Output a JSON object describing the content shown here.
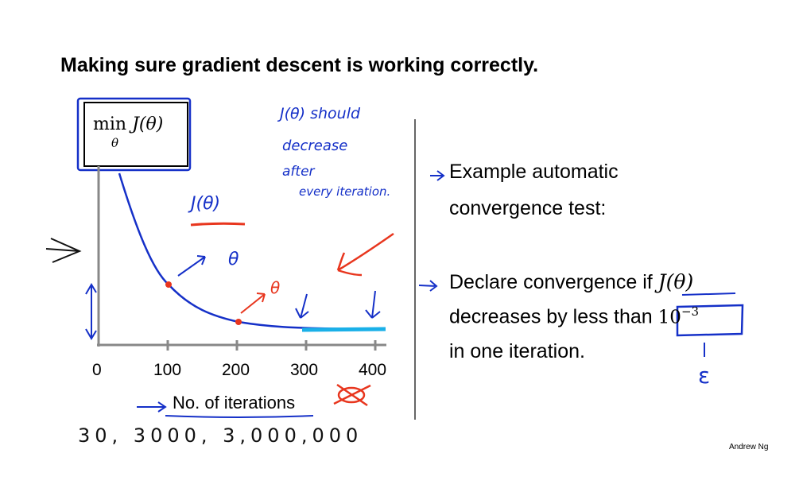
{
  "slide": {
    "title": "Making sure gradient descent is working correctly.",
    "min_expression": {
      "operator": "min",
      "function": "J(θ)",
      "subscript": "θ"
    },
    "plot": {
      "x_ticks": [
        "0",
        "100",
        "200",
        "300",
        "400"
      ],
      "xlabel": "No. of iterations"
    },
    "right_column": {
      "line1": "Example automatic",
      "line2": "convergence test:",
      "line3_prefix": "Declare convergence if ",
      "line3_math": "J(θ)",
      "line4_prefix": "decreases by less than ",
      "line4_math": "10",
      "line4_exponent": "−3",
      "line5": "in one iteration."
    },
    "annotations": {
      "note_line1": "J(θ) should",
      "note_line2": "decrease",
      "note_line3": "after",
      "note_line4": "every iteration.",
      "curve_label": "J(θ)",
      "theta_mark_1": "θ",
      "theta_mark_2": "θ",
      "epsilon": "ε",
      "iteration_counts": "30,   3000,  3,000,000"
    },
    "credit": "Andrew Ng",
    "colors": {
      "ink_blue": "#1530c8",
      "ink_red": "#e8361e",
      "highlight_cyan": "#1ab0e8"
    }
  }
}
